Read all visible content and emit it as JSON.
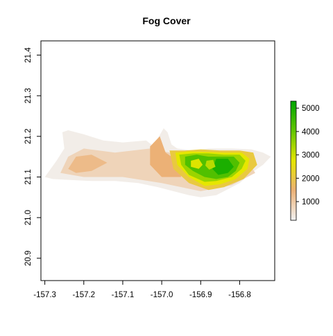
{
  "chart_data": {
    "type": "heatmap",
    "title": "Fog Cover",
    "xlabel": "",
    "ylabel": "",
    "xlim": [
      -157.31,
      -156.71
    ],
    "ylim": [
      20.845,
      21.435
    ],
    "x_ticks": [
      -157.3,
      -157.2,
      -157.1,
      -157.0,
      -156.9,
      -156.8
    ],
    "x_tick_labels": [
      "-157.3",
      "-157.2",
      "-157.1",
      "-157.0",
      "-156.9",
      "-156.8"
    ],
    "y_ticks": [
      20.9,
      21.0,
      21.1,
      21.2,
      21.3,
      21.4
    ],
    "y_tick_labels": [
      "20.9",
      "21.0",
      "21.1",
      "21.2",
      "21.3",
      "21.4"
    ],
    "legend": {
      "placement": "right",
      "min": 200,
      "max": 5300,
      "ticks": [
        1000,
        2000,
        3000,
        4000,
        5000
      ],
      "tick_labels": [
        "1000",
        "2000",
        "3000",
        "4000",
        "5000"
      ],
      "colors": [
        "#f2f2f2",
        "#ecb176",
        "#e6e600",
        "#63c600",
        "#00a600"
      ]
    },
    "island_outline": [
      [
        -157.3,
        21.1
      ],
      [
        -157.27,
        21.14
      ],
      [
        -157.25,
        21.17
      ],
      [
        -157.255,
        21.21
      ],
      [
        -157.24,
        21.215
      ],
      [
        -157.2,
        21.205
      ],
      [
        -157.15,
        21.19
      ],
      [
        -157.1,
        21.185
      ],
      [
        -157.04,
        21.19
      ],
      [
        -157.02,
        21.175
      ],
      [
        -157.01,
        21.195
      ],
      [
        -156.995,
        21.22
      ],
      [
        -156.985,
        21.21
      ],
      [
        -156.975,
        21.18
      ],
      [
        -156.96,
        21.17
      ],
      [
        -156.92,
        21.165
      ],
      [
        -156.88,
        21.17
      ],
      [
        -156.82,
        21.17
      ],
      [
        -156.77,
        21.168
      ],
      [
        -156.74,
        21.16
      ],
      [
        -156.72,
        21.15
      ],
      [
        -156.74,
        21.13
      ],
      [
        -156.77,
        21.11
      ],
      [
        -156.8,
        21.085
      ],
      [
        -156.83,
        21.07
      ],
      [
        -156.86,
        21.055
      ],
      [
        -156.9,
        21.05
      ],
      [
        -156.93,
        21.055
      ],
      [
        -156.97,
        21.065
      ],
      [
        -157.01,
        21.075
      ],
      [
        -157.06,
        21.085
      ],
      [
        -157.12,
        21.09
      ],
      [
        -157.18,
        21.09
      ],
      [
        -157.24,
        21.093
      ],
      [
        -157.28,
        21.095
      ]
    ],
    "fog_regions": [
      {
        "level": 300,
        "points": [
          [
            -157.3,
            21.1
          ],
          [
            -157.27,
            21.14
          ],
          [
            -157.25,
            21.17
          ],
          [
            -157.255,
            21.21
          ],
          [
            -157.24,
            21.215
          ],
          [
            -157.2,
            21.205
          ],
          [
            -157.15,
            21.19
          ],
          [
            -157.1,
            21.185
          ],
          [
            -157.04,
            21.19
          ],
          [
            -157.02,
            21.175
          ],
          [
            -157.01,
            21.195
          ],
          [
            -156.995,
            21.22
          ],
          [
            -156.985,
            21.21
          ],
          [
            -156.975,
            21.18
          ],
          [
            -156.96,
            21.17
          ],
          [
            -156.92,
            21.165
          ],
          [
            -156.88,
            21.17
          ],
          [
            -156.82,
            21.17
          ],
          [
            -156.77,
            21.168
          ],
          [
            -156.74,
            21.16
          ],
          [
            -156.72,
            21.15
          ],
          [
            -156.74,
            21.13
          ],
          [
            -156.77,
            21.11
          ],
          [
            -156.8,
            21.085
          ],
          [
            -156.83,
            21.07
          ],
          [
            -156.86,
            21.055
          ],
          [
            -156.9,
            21.05
          ],
          [
            -156.93,
            21.055
          ],
          [
            -156.97,
            21.065
          ],
          [
            -157.01,
            21.075
          ],
          [
            -157.06,
            21.085
          ],
          [
            -157.12,
            21.09
          ],
          [
            -157.18,
            21.09
          ],
          [
            -157.24,
            21.093
          ],
          [
            -157.28,
            21.095
          ]
        ]
      },
      {
        "level": 800,
        "points": [
          [
            -157.26,
            21.11
          ],
          [
            -157.24,
            21.15
          ],
          [
            -157.2,
            21.17
          ],
          [
            -157.12,
            21.16
          ],
          [
            -157.03,
            21.17
          ],
          [
            -156.98,
            21.16
          ],
          [
            -156.88,
            21.15
          ],
          [
            -156.78,
            21.14
          ],
          [
            -156.76,
            21.11
          ],
          [
            -156.82,
            21.08
          ],
          [
            -156.9,
            21.065
          ],
          [
            -157.0,
            21.085
          ],
          [
            -157.1,
            21.1
          ],
          [
            -157.2,
            21.1
          ]
        ]
      },
      {
        "level": 1300,
        "points": [
          [
            -157.24,
            21.12
          ],
          [
            -157.22,
            21.15
          ],
          [
            -157.18,
            21.155
          ],
          [
            -157.14,
            21.135
          ],
          [
            -157.18,
            21.115
          ],
          [
            -157.22,
            21.11
          ]
        ]
      },
      {
        "level": 1500,
        "points": [
          [
            -157.03,
            21.175
          ],
          [
            -157.005,
            21.2
          ],
          [
            -156.99,
            21.16
          ],
          [
            -156.96,
            21.14
          ],
          [
            -156.95,
            21.1
          ],
          [
            -157.0,
            21.1
          ],
          [
            -157.03,
            21.13
          ]
        ]
      },
      {
        "level": 2100,
        "points": [
          [
            -156.98,
            21.165
          ],
          [
            -156.94,
            21.165
          ],
          [
            -156.9,
            21.168
          ],
          [
            -156.85,
            21.165
          ],
          [
            -156.8,
            21.165
          ],
          [
            -156.765,
            21.16
          ],
          [
            -156.755,
            21.13
          ],
          [
            -156.79,
            21.095
          ],
          [
            -156.84,
            21.075
          ],
          [
            -156.88,
            21.068
          ],
          [
            -156.93,
            21.085
          ],
          [
            -156.97,
            21.12
          ]
        ]
      },
      {
        "level": 2800,
        "points": [
          [
            -156.965,
            21.16
          ],
          [
            -156.93,
            21.163
          ],
          [
            -156.89,
            21.162
          ],
          [
            -156.84,
            21.16
          ],
          [
            -156.795,
            21.16
          ],
          [
            -156.775,
            21.145
          ],
          [
            -156.78,
            21.12
          ],
          [
            -156.81,
            21.095
          ],
          [
            -156.85,
            21.082
          ],
          [
            -156.89,
            21.078
          ],
          [
            -156.93,
            21.1
          ],
          [
            -156.96,
            21.13
          ]
        ]
      },
      {
        "level": 3600,
        "points": [
          [
            -156.955,
            21.155
          ],
          [
            -156.92,
            21.158
          ],
          [
            -156.88,
            21.158
          ],
          [
            -156.84,
            21.155
          ],
          [
            -156.8,
            21.155
          ],
          [
            -156.785,
            21.14
          ],
          [
            -156.795,
            21.12
          ],
          [
            -156.82,
            21.1
          ],
          [
            -156.86,
            21.09
          ],
          [
            -156.89,
            21.088
          ],
          [
            -156.93,
            21.105
          ],
          [
            -156.95,
            21.13
          ]
        ]
      },
      {
        "level": 4400,
        "points": [
          [
            -156.94,
            21.15
          ],
          [
            -156.91,
            21.155
          ],
          [
            -156.88,
            21.15
          ],
          [
            -156.85,
            21.15
          ],
          [
            -156.815,
            21.15
          ],
          [
            -156.8,
            21.135
          ],
          [
            -156.81,
            21.115
          ],
          [
            -156.83,
            21.1
          ],
          [
            -156.86,
            21.095
          ],
          [
            -156.89,
            21.1
          ],
          [
            -156.92,
            21.115
          ],
          [
            -156.94,
            21.13
          ]
        ]
      },
      {
        "level": 5000,
        "points": [
          [
            -156.86,
            21.145
          ],
          [
            -156.83,
            21.145
          ],
          [
            -156.815,
            21.125
          ],
          [
            -156.83,
            21.11
          ],
          [
            -156.855,
            21.105
          ],
          [
            -156.87,
            21.12
          ]
        ]
      },
      {
        "level": 2900,
        "points": [
          [
            -156.925,
            21.14
          ],
          [
            -156.905,
            21.145
          ],
          [
            -156.895,
            21.13
          ],
          [
            -156.905,
            21.12
          ],
          [
            -156.925,
            21.125
          ]
        ]
      },
      {
        "level": 3300,
        "points": [
          [
            -156.885,
            21.14
          ],
          [
            -156.868,
            21.142
          ],
          [
            -156.862,
            21.125
          ],
          [
            -156.878,
            21.118
          ],
          [
            -156.888,
            21.128
          ]
        ]
      }
    ]
  }
}
